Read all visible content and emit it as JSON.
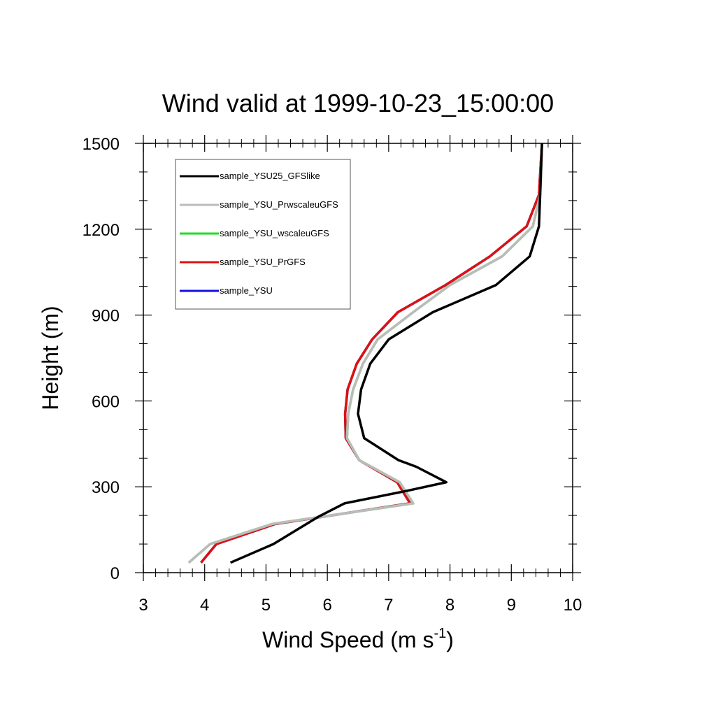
{
  "chart_data": {
    "type": "line",
    "title": "Wind valid at 1999-10-23_15:00:00",
    "xlabel": "Wind Speed (m s",
    "xlabel_sup": "-1",
    "xlabel_end": ")",
    "ylabel": "Height (m)",
    "xlim": [
      3,
      10
    ],
    "ylim": [
      0,
      1500
    ],
    "xticks": [
      3,
      4,
      5,
      6,
      7,
      8,
      9,
      10
    ],
    "yticks": [
      0,
      300,
      600,
      900,
      1200,
      1500
    ],
    "legend_position": "top-left",
    "series": [
      {
        "name": "sample_YSU25_GFSlike",
        "color": "#000000",
        "points": [
          [
            4.42,
            35
          ],
          [
            5.12,
            100
          ],
          [
            5.85,
            195
          ],
          [
            6.28,
            242
          ],
          [
            7.28,
            285
          ],
          [
            7.94,
            316
          ],
          [
            7.45,
            370
          ],
          [
            7.16,
            393
          ],
          [
            6.6,
            470
          ],
          [
            6.5,
            555
          ],
          [
            6.55,
            640
          ],
          [
            6.7,
            730
          ],
          [
            7.0,
            815
          ],
          [
            7.72,
            910
          ],
          [
            8.75,
            1005
          ],
          [
            9.3,
            1105
          ],
          [
            9.45,
            1210
          ],
          [
            9.47,
            1320
          ],
          [
            9.5,
            1500
          ]
        ]
      },
      {
        "name": "sample_YSU_PrwscaleuGFS",
        "color": "#bbbbbb",
        "points": [
          [
            3.74,
            35
          ],
          [
            4.09,
            100
          ],
          [
            5.1,
            170
          ],
          [
            7.4,
            242
          ],
          [
            7.18,
            316
          ],
          [
            6.52,
            393
          ],
          [
            6.32,
            470
          ],
          [
            6.34,
            555
          ],
          [
            6.42,
            640
          ],
          [
            6.58,
            730
          ],
          [
            6.82,
            815
          ],
          [
            7.4,
            910
          ],
          [
            8.0,
            1005
          ],
          [
            8.85,
            1105
          ],
          [
            9.35,
            1210
          ],
          [
            9.47,
            1320
          ],
          [
            9.5,
            1500
          ]
        ]
      },
      {
        "name": "sample_YSU_wscaleuGFS",
        "color": "#22dd22",
        "points": [
          [
            3.74,
            35
          ],
          [
            4.09,
            100
          ],
          [
            5.1,
            170
          ],
          [
            7.4,
            242
          ],
          [
            7.18,
            316
          ],
          [
            6.52,
            393
          ],
          [
            6.32,
            470
          ],
          [
            6.34,
            555
          ],
          [
            6.42,
            640
          ],
          [
            6.58,
            730
          ],
          [
            6.82,
            815
          ],
          [
            7.4,
            910
          ],
          [
            8.0,
            1005
          ],
          [
            8.85,
            1105
          ],
          [
            9.35,
            1210
          ],
          [
            9.47,
            1320
          ],
          [
            9.5,
            1500
          ]
        ]
      },
      {
        "name": "sample_YSU_PrGFS",
        "color": "#dd1111",
        "points": [
          [
            3.94,
            35
          ],
          [
            4.19,
            100
          ],
          [
            5.15,
            170
          ],
          [
            7.35,
            242
          ],
          [
            7.14,
            316
          ],
          [
            6.52,
            393
          ],
          [
            6.3,
            470
          ],
          [
            6.29,
            555
          ],
          [
            6.33,
            640
          ],
          [
            6.48,
            730
          ],
          [
            6.73,
            815
          ],
          [
            7.15,
            910
          ],
          [
            7.93,
            1005
          ],
          [
            8.65,
            1105
          ],
          [
            9.25,
            1210
          ],
          [
            9.45,
            1320
          ],
          [
            9.5,
            1500
          ]
        ]
      },
      {
        "name": "sample_YSU",
        "color": "#1111dd",
        "points": [
          [
            3.94,
            35
          ],
          [
            4.19,
            100
          ],
          [
            5.15,
            170
          ],
          [
            7.35,
            242
          ],
          [
            7.14,
            316
          ],
          [
            6.52,
            393
          ],
          [
            6.3,
            470
          ],
          [
            6.29,
            555
          ],
          [
            6.33,
            640
          ],
          [
            6.48,
            730
          ],
          [
            6.73,
            815
          ],
          [
            7.15,
            910
          ],
          [
            7.93,
            1005
          ],
          [
            8.65,
            1105
          ],
          [
            9.25,
            1210
          ],
          [
            9.45,
            1320
          ],
          [
            9.5,
            1500
          ]
        ]
      }
    ],
    "draw_order": [
      4,
      3,
      2,
      1,
      0
    ]
  }
}
